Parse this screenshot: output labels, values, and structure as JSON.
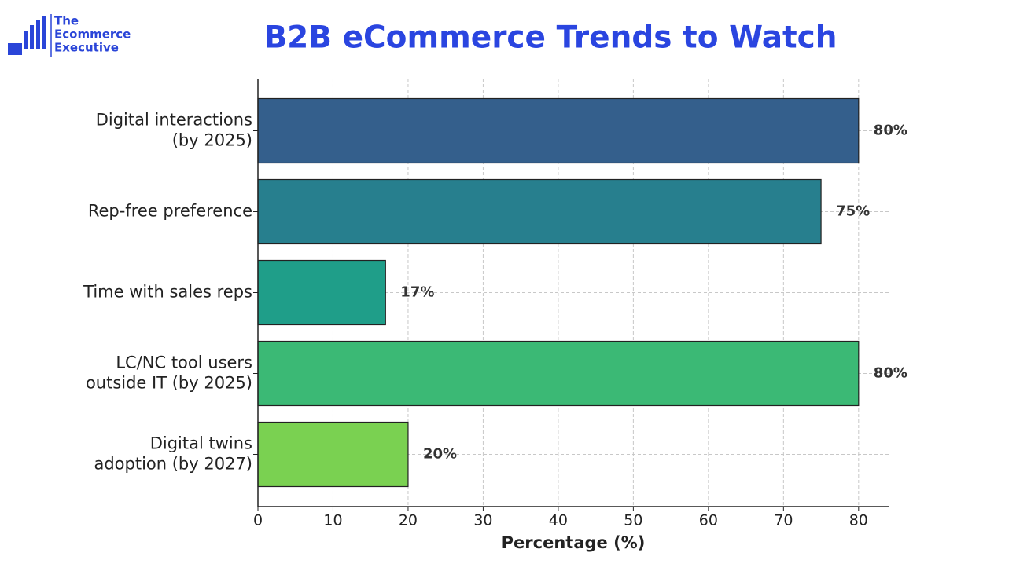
{
  "logo": [
    "The",
    "Ecommerce",
    "Executive"
  ],
  "chart_data": {
    "type": "barh",
    "title": "B2B eCommerce Trends to Watch",
    "xlabel": "Percentage (%)",
    "categories": [
      "Digital interactions\n(by 2025)",
      "Rep-free preference",
      "Time with sales reps",
      "LC/NC tool users\noutside IT (by 2025)",
      "Digital twins\nadoption (by 2027)"
    ],
    "values": [
      80,
      75,
      17,
      80,
      20
    ],
    "value_labels": [
      "80%",
      "75%",
      "17%",
      "80%",
      "20%"
    ],
    "colors": [
      "#345f8c",
      "#277f8e",
      "#1f9e89",
      "#3bb975",
      "#7ad151"
    ],
    "xlim": [
      0,
      84
    ],
    "xticks": [
      0,
      10,
      20,
      30,
      40,
      50,
      60,
      70,
      80
    ],
    "grid": true
  }
}
